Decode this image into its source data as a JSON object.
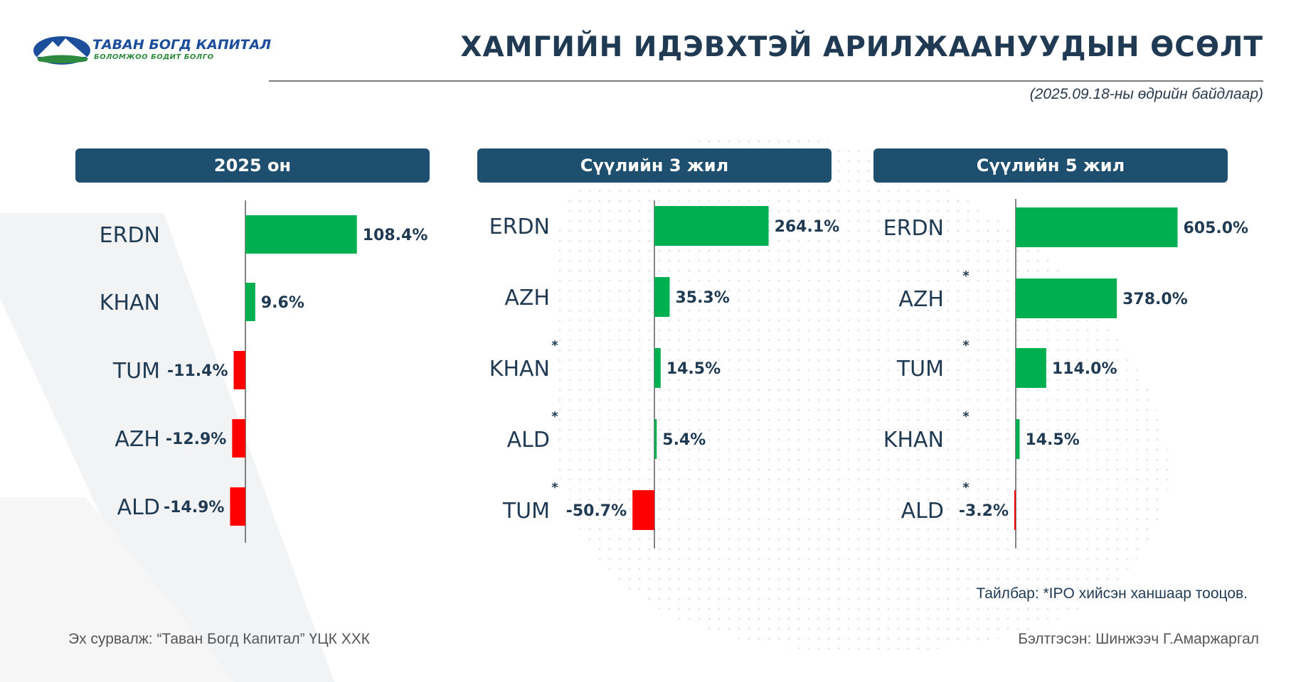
{
  "header": {
    "logo_name": "ТАВАН БОГД КАПИТАЛ",
    "logo_slogan": "БОЛОМЖОО БОДИТ БОЛГО",
    "title": "ХАМГИЙН ИДЭВХТЭЙ АРИЛЖААНУУДЫН ӨСӨЛТ",
    "subtitle": "(2025.09.18-ны өдрийн байдлаар)"
  },
  "colors": {
    "positive": "#00b050",
    "negative": "#ff0000",
    "header_bg": "#1f4f6e",
    "text": "#1f3a52"
  },
  "chart_data": [
    {
      "type": "bar",
      "orientation": "horizontal",
      "title": "2025 он",
      "categories": [
        "ERDN",
        "KHAN",
        "TUM",
        "AZH",
        "ALD"
      ],
      "values": [
        108.4,
        9.6,
        -11.4,
        -12.9,
        -14.9
      ],
      "labels": [
        "108.4%",
        "9.6%",
        "-11.4%",
        "-12.9%",
        "-14.9%"
      ],
      "ipo_marked": [
        false,
        false,
        false,
        false,
        false
      ],
      "unit": "%"
    },
    {
      "type": "bar",
      "orientation": "horizontal",
      "title": "Сүүлийн 3 жил",
      "categories": [
        "ERDN",
        "AZH",
        "KHAN",
        "ALD",
        "TUM"
      ],
      "values": [
        264.1,
        35.3,
        14.5,
        5.4,
        -50.7
      ],
      "labels": [
        "264.1%",
        "35.3%",
        "14.5%",
        "5.4%",
        "-50.7%"
      ],
      "ipo_marked": [
        false,
        false,
        true,
        true,
        true
      ],
      "unit": "%"
    },
    {
      "type": "bar",
      "orientation": "horizontal",
      "title": "Сүүлийн 5 жил",
      "categories": [
        "ERDN",
        "AZH",
        "TUM",
        "KHAN",
        "ALD"
      ],
      "values": [
        605.0,
        378.0,
        114.0,
        14.5,
        -3.2
      ],
      "labels": [
        "605.0%",
        "378.0%",
        "114.0%",
        "14.5%",
        "-3.2%"
      ],
      "ipo_marked": [
        false,
        true,
        true,
        true,
        true
      ],
      "unit": "%"
    }
  ],
  "footer": {
    "note": "Тайлбар: *IPO хийсэн ханшаар тооцов.",
    "source": "Эх сурвалж: “Таван Богд Капитал” ҮЦК ХХК",
    "author": "Бэлтгэсэн: Шинжээч Г.Амаржаргал"
  }
}
